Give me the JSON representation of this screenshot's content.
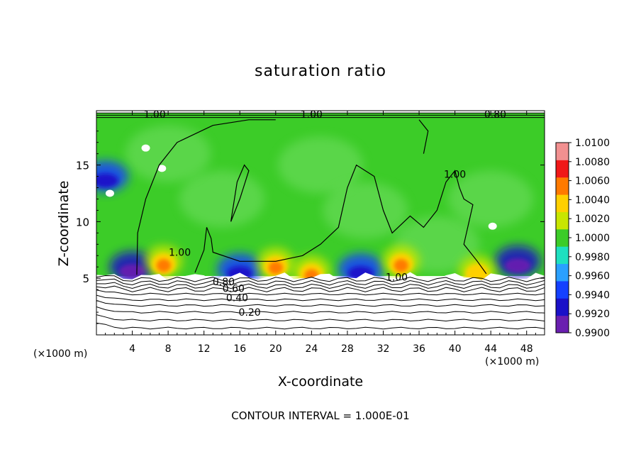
{
  "chart_data": {
    "type": "heatmap",
    "title": "saturation ratio",
    "xlabel": "X-coordinate",
    "ylabel": "Z-coordinate",
    "x_unit_label": "(×1000 m)",
    "footer": "CONTOUR INTERVAL = 1.000E-01",
    "xlim": [
      0,
      50
    ],
    "ylim": [
      0,
      19.8
    ],
    "x_ticks": [
      4,
      8,
      12,
      16,
      20,
      24,
      28,
      32,
      36,
      40,
      44,
      48
    ],
    "y_ticks": [
      5,
      10,
      15
    ],
    "colorbar": {
      "levels": [
        0.99,
        0.992,
        0.994,
        0.996,
        0.998,
        1.0,
        1.002,
        1.004,
        1.006,
        1.008,
        1.01
      ],
      "tick_labels": [
        "0.9900",
        "0.9920",
        "0.9940",
        "0.9960",
        "0.9980",
        "1.0000",
        "1.0020",
        "1.0040",
        "1.0060",
        "1.0080",
        "1.0100"
      ],
      "colors": [
        "#6a1fb0",
        "#1a10c8",
        "#1440ff",
        "#2aa0ff",
        "#1ee0c0",
        "#3ccc28",
        "#c8e600",
        "#ffd000",
        "#ff7a00",
        "#f01818",
        "#f29090"
      ]
    },
    "background_value": 1.0001,
    "hotspots": [
      {
        "x": 7.5,
        "z": 6.5,
        "value": 1.008
      },
      {
        "x": 20.0,
        "z": 6.3,
        "value": 1.008
      },
      {
        "x": 24.0,
        "z": 5.6,
        "value": 1.007
      },
      {
        "x": 34.0,
        "z": 6.5,
        "value": 1.008
      },
      {
        "x": 42.5,
        "z": 5.6,
        "value": 1.006
      }
    ],
    "coldspots": [
      {
        "x": 4.0,
        "z": 6.0,
        "value": 0.992
      },
      {
        "x": 16.0,
        "z": 5.8,
        "value": 0.993
      },
      {
        "x": 29.5,
        "z": 5.8,
        "value": 0.993
      },
      {
        "x": 47.0,
        "z": 6.5,
        "value": 0.992
      },
      {
        "x": 1.0,
        "z": 14.0,
        "value": 0.994
      }
    ],
    "contour_labels": [
      {
        "text": "1.00",
        "x": 6.5,
        "z": 19.5
      },
      {
        "text": "1.00",
        "x": 24.0,
        "z": 19.5
      },
      {
        "text": "0.80",
        "x": 44.5,
        "z": 19.5
      },
      {
        "text": "1.00",
        "x": 40.0,
        "z": 14.2
      },
      {
        "text": "1.00",
        "x": 9.3,
        "z": 7.3
      },
      {
        "text": "1.00",
        "x": 33.5,
        "z": 5.1
      },
      {
        "text": "0.80",
        "x": 14.2,
        "z": 4.7
      },
      {
        "text": "0.60",
        "x": 15.3,
        "z": 4.1
      },
      {
        "text": "0.40",
        "x": 15.7,
        "z": 3.3
      },
      {
        "text": "0.20",
        "x": 17.1,
        "z": 2.0
      }
    ]
  }
}
